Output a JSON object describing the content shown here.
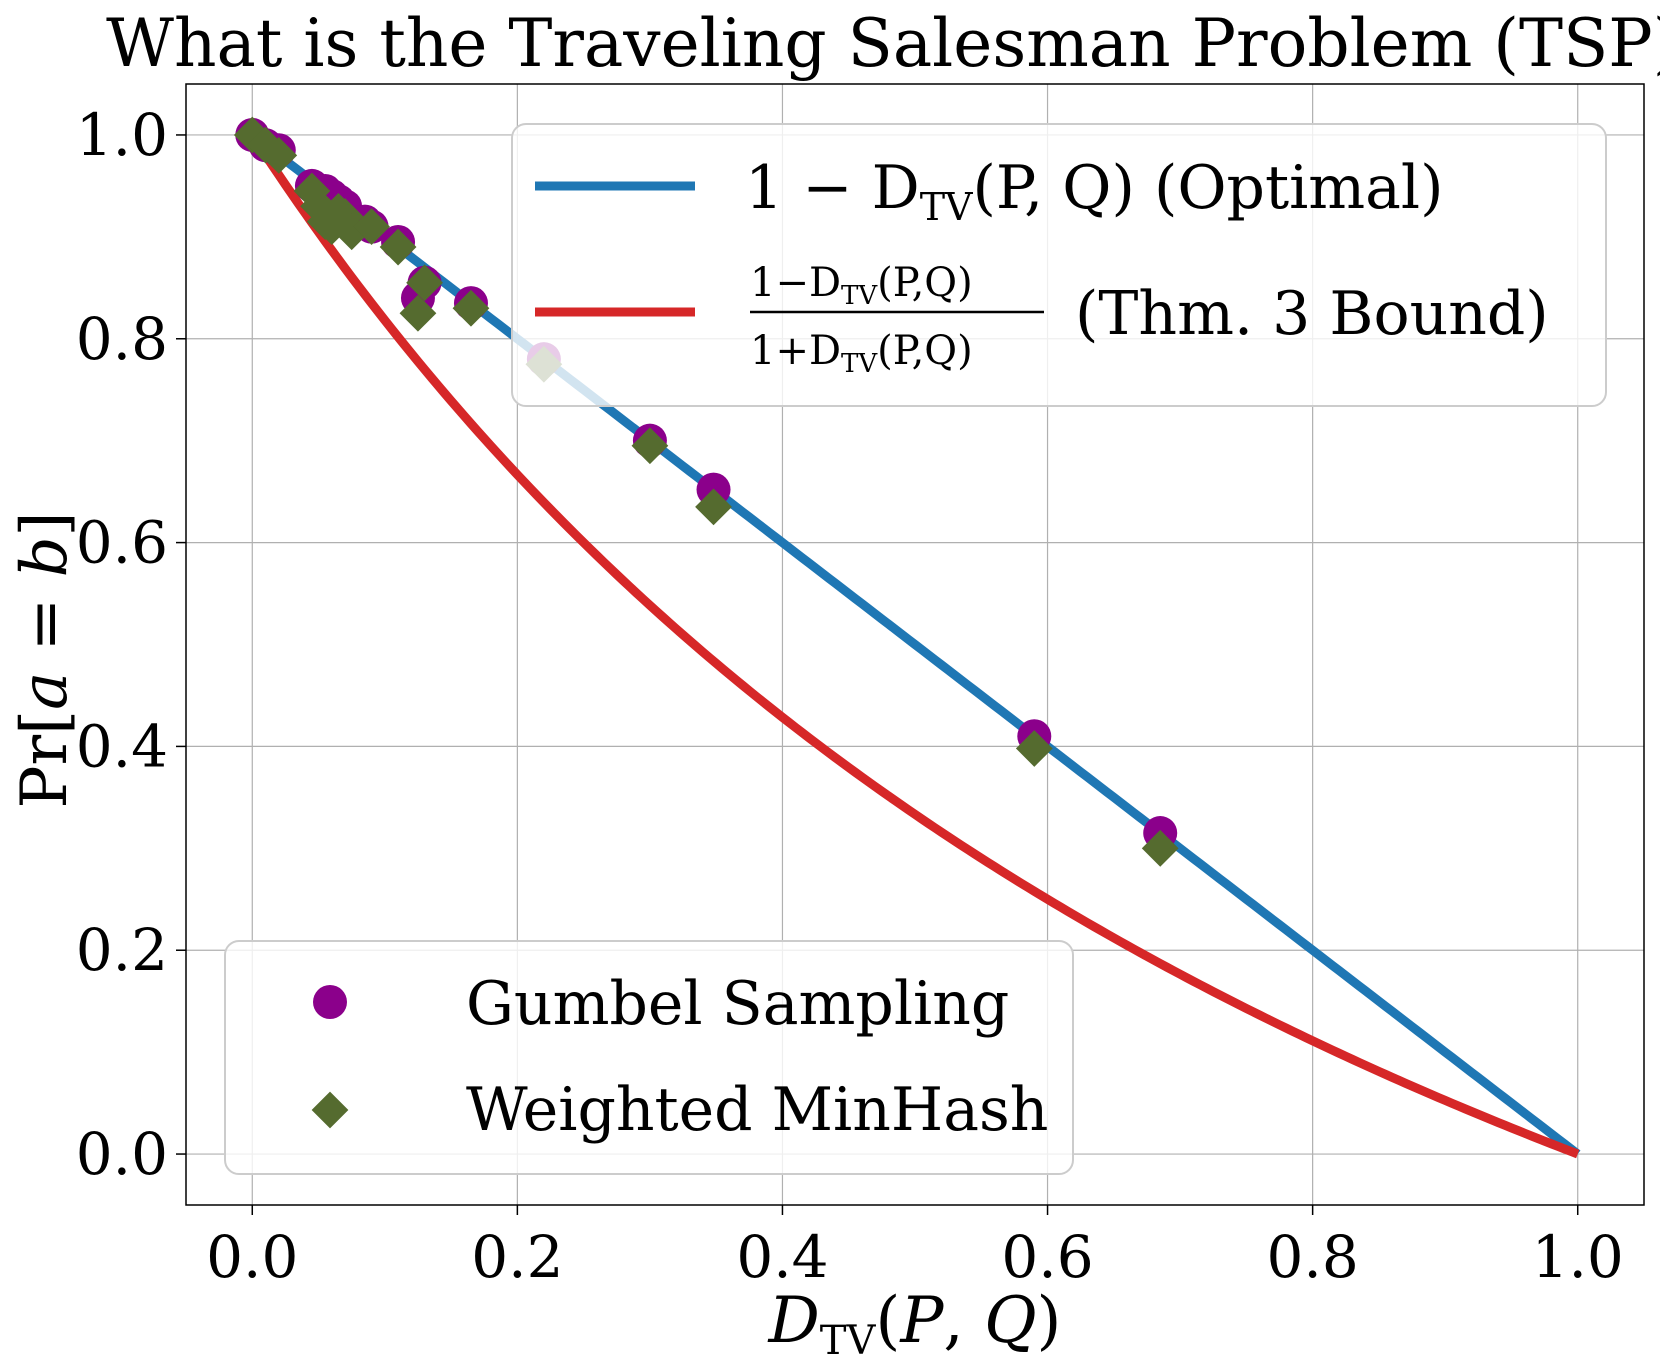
{
  "chart_data": {
    "type": "line+scatter",
    "title": "What is the Traveling Salesman Problem (TSP)?",
    "xlabel": "D_TV(P, Q)",
    "ylabel": "Pr[a = b]",
    "xlim": [
      -0.05,
      1.05
    ],
    "ylim": [
      -0.05,
      1.05
    ],
    "xticks": [
      0.0,
      0.2,
      0.4,
      0.6,
      0.8,
      1.0
    ],
    "yticks": [
      0.0,
      0.2,
      0.4,
      0.6,
      0.8,
      1.0
    ],
    "xtick_labels": [
      "0.0",
      "0.2",
      "0.4",
      "0.6",
      "0.8",
      "1.0"
    ],
    "ytick_labels": [
      "0.0",
      "0.2",
      "0.4",
      "0.6",
      "0.8",
      "1.0"
    ],
    "grid": true,
    "lines": [
      {
        "name": "1 − D_TV(P, Q) (Optimal)",
        "legend_main": "1 − D",
        "legend_sub": "TV",
        "legend_args": "(P, Q)",
        "legend_note": "(Optimal)",
        "color": "#1f77b4",
        "formula": "1 - x",
        "domain": [
          0,
          1
        ]
      },
      {
        "name": "(1−D_TV(P,Q))/(1+D_TV(P,Q)) (Thm. 3 Bound)",
        "frac_num": "1−D",
        "frac_den": "1+D",
        "frac_sub": "TV",
        "frac_args": "(P,Q)",
        "legend_note": "(Thm. 3 Bound)",
        "color": "#d62728",
        "formula": "(1 - x) / (1 + x)",
        "domain": [
          0,
          1
        ]
      }
    ],
    "scatter": [
      {
        "name": "Gumbel Sampling",
        "marker": "circle",
        "color": "#8b008b",
        "points": [
          [
            0.0,
            1.0
          ],
          [
            0.01,
            0.99
          ],
          [
            0.02,
            0.985
          ],
          [
            0.045,
            0.95
          ],
          [
            0.055,
            0.945
          ],
          [
            0.06,
            0.94
          ],
          [
            0.065,
            0.935
          ],
          [
            0.07,
            0.93
          ],
          [
            0.085,
            0.915
          ],
          [
            0.09,
            0.91
          ],
          [
            0.11,
            0.895
          ],
          [
            0.125,
            0.84
          ],
          [
            0.13,
            0.855
          ],
          [
            0.165,
            0.835
          ],
          [
            0.22,
            0.78
          ],
          [
            0.3,
            0.7
          ],
          [
            0.348,
            0.652
          ],
          [
            0.59,
            0.41
          ],
          [
            0.685,
            0.315
          ]
        ]
      },
      {
        "name": "Weighted MinHash",
        "marker": "diamond",
        "color": "#556b2f",
        "points": [
          [
            0.0,
            1.0
          ],
          [
            0.01,
            0.99
          ],
          [
            0.02,
            0.98
          ],
          [
            0.045,
            0.945
          ],
          [
            0.05,
            0.93
          ],
          [
            0.055,
            0.915
          ],
          [
            0.06,
            0.91
          ],
          [
            0.065,
            0.925
          ],
          [
            0.07,
            0.92
          ],
          [
            0.075,
            0.905
          ],
          [
            0.09,
            0.91
          ],
          [
            0.11,
            0.89
          ],
          [
            0.125,
            0.825
          ],
          [
            0.13,
            0.855
          ],
          [
            0.165,
            0.83
          ],
          [
            0.22,
            0.775
          ],
          [
            0.3,
            0.695
          ],
          [
            0.348,
            0.635
          ],
          [
            0.59,
            0.398
          ],
          [
            0.685,
            0.3
          ]
        ]
      }
    ],
    "legends": {
      "lines_position": "top-right",
      "scatter_position": "bottom-left"
    }
  }
}
